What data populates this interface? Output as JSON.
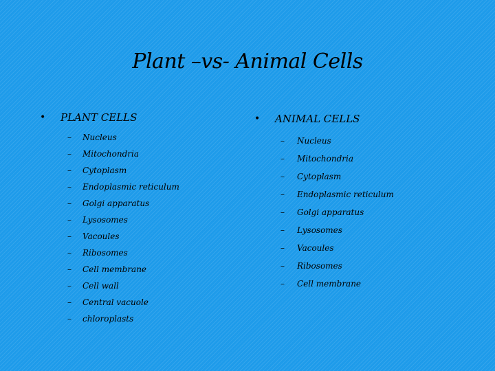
{
  "title": "Plant –vs- Animal Cells",
  "bullet": "•",
  "dash": "–",
  "plant": {
    "heading": "PLANT CELLS",
    "items": [
      "Nucleus",
      "Mitochondria",
      "Cytoplasm",
      "Endoplasmic reticulum",
      "Golgi apparatus",
      "Lysosomes",
      "Vacoules",
      "Ribosomes",
      "Cell membrane",
      "Cell wall",
      "Central vacuole",
      "chloroplasts"
    ]
  },
  "animal": {
    "heading": "ANIMAL CELLS",
    "items": [
      "Nucleus",
      "Mitochondria",
      "Cytoplasm",
      "Endoplasmic reticulum",
      "Golgi apparatus",
      "Lysosomes",
      "Vacoules",
      "Ribosomes",
      "Cell membrane"
    ]
  },
  "colors": {
    "background": "#1e9bea",
    "text": "#000000"
  }
}
